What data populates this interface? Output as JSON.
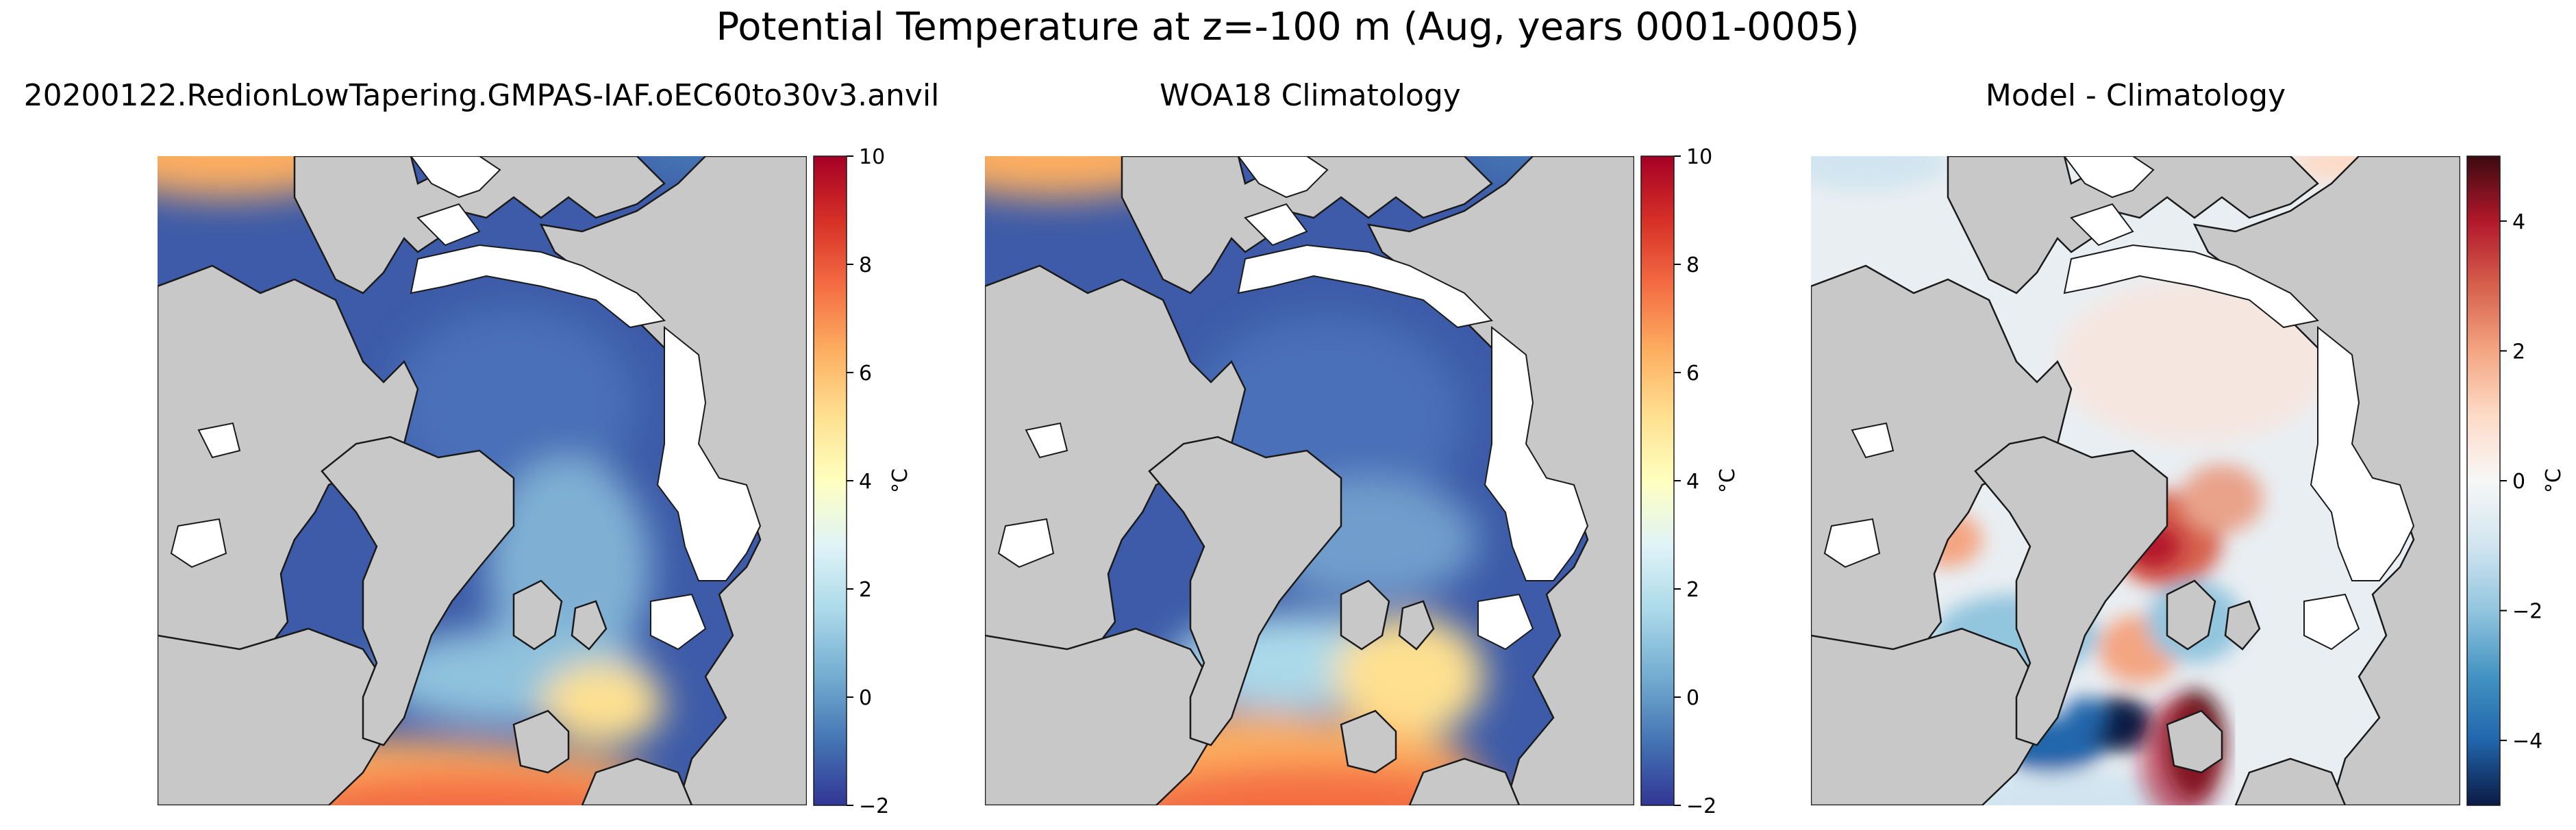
{
  "figure": {
    "title": "Potential Temperature at z=-100 m (Aug, years 0001-0005)"
  },
  "colors": {
    "land": "#c8c8c8",
    "sea_ice": "#ffffff",
    "coast": "#1a1a1a",
    "cmap_temperature": [
      "#313695",
      "#4575b4",
      "#74add1",
      "#abd9e9",
      "#e0f3f8",
      "#ffffbf",
      "#fee090",
      "#fdae61",
      "#f46d43",
      "#d73027",
      "#a50026"
    ],
    "cmap_difference": [
      "#0b1a45",
      "#2166ac",
      "#4393c3",
      "#92c5de",
      "#d1e5f0",
      "#f7f7f7",
      "#fddbc7",
      "#f4a582",
      "#d6604d",
      "#b2182b",
      "#3d0a10"
    ]
  },
  "chart_data": [
    {
      "type": "heatmap",
      "title": "20200122.RedionLowTapering.GMPAS-IAF.oEC60to30v3.anvil",
      "colorbar": {
        "label": "°C",
        "range": [
          -2,
          10
        ],
        "ticks": [
          "−2",
          "0",
          "2",
          "4",
          "6",
          "8",
          "10"
        ]
      },
      "field_description_values": {
        "arctic_basin": -1.5,
        "atlantic_inflow_max": 7,
        "barents_sea": 2
      }
    },
    {
      "type": "heatmap",
      "title": "WOA18 Climatology",
      "colorbar": {
        "label": "°C",
        "range": [
          -2,
          10
        ],
        "ticks": [
          "−2",
          "0",
          "2",
          "4",
          "6",
          "8",
          "10"
        ]
      },
      "field_description_values": {
        "arctic_basin": -1.5,
        "atlantic_inflow_max": 8,
        "barents_sea": 2.5
      }
    },
    {
      "type": "heatmap",
      "title": "Model - Climatology",
      "colorbar": {
        "label": "°C",
        "range": [
          -5,
          5
        ],
        "ticks": [
          "−4",
          "−2",
          "0",
          "2",
          "4"
        ]
      },
      "field_description_values": {
        "max_positive_bias": 5,
        "max_negative_bias": -5,
        "arctic_basin_bias": 0.3
      }
    }
  ]
}
